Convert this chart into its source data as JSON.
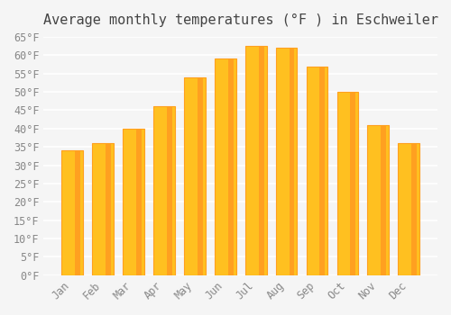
{
  "title": "Average monthly temperatures (°F ) in Eschweiler",
  "months": [
    "Jan",
    "Feb",
    "Mar",
    "Apr",
    "May",
    "Jun",
    "Jul",
    "Aug",
    "Sep",
    "Oct",
    "Nov",
    "Dec"
  ],
  "values": [
    34,
    36,
    40,
    46,
    54,
    59,
    62.5,
    62,
    57,
    50,
    41,
    36
  ],
  "bar_color_main": "#FFC020",
  "bar_color_edge": "#FFA020",
  "ylim": [
    0,
    65
  ],
  "yticks": [
    0,
    5,
    10,
    15,
    20,
    25,
    30,
    35,
    40,
    45,
    50,
    55,
    60,
    65
  ],
  "ytick_labels": [
    "0°F",
    "5°F",
    "10°F",
    "15°F",
    "20°F",
    "25°F",
    "30°F",
    "35°F",
    "40°F",
    "45°F",
    "50°F",
    "55°F",
    "60°F",
    "65°F"
  ],
  "background_color": "#f5f5f5",
  "grid_color": "#ffffff",
  "title_fontsize": 11,
  "tick_fontsize": 8.5,
  "bar_width": 0.7
}
